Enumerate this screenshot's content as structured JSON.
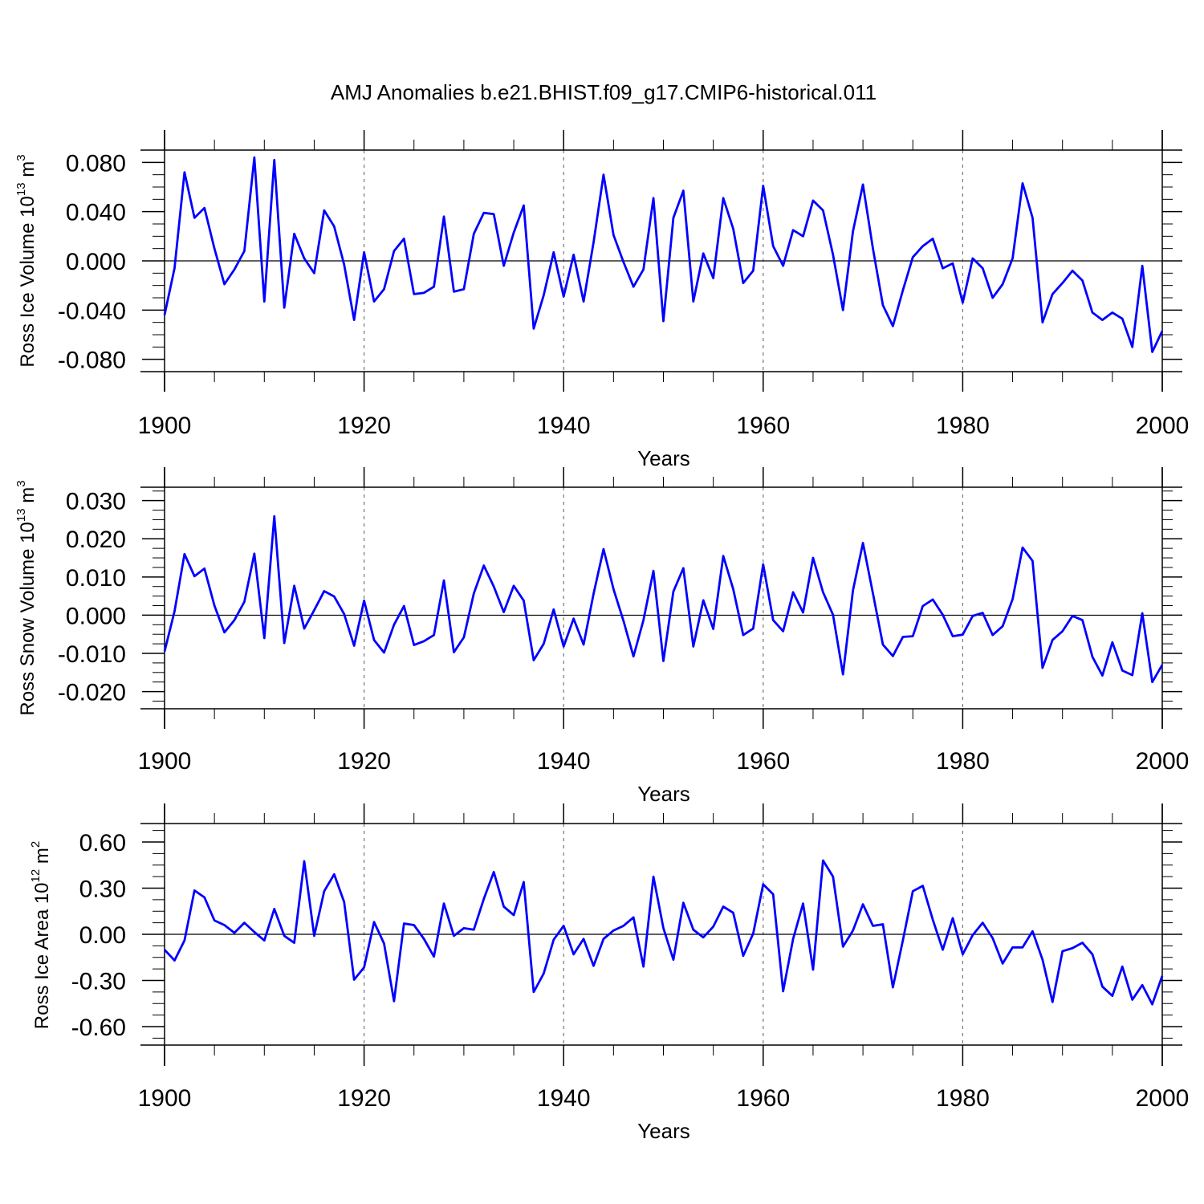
{
  "title": "AMJ Anomalies b.e21.BHIST.f09_g17.CMIP6-historical.011",
  "colors": {
    "series": "#0000ff",
    "axes": "#000000",
    "grid": "#777777"
  },
  "chart_data": [
    {
      "type": "line",
      "title": "AMJ Anomalies b.e21.BHIST.f09_g17.CMIP6-historical.011",
      "xlabel": "Years",
      "ylabel": {
        "text": "Ross Ice Volume 10",
        "exp": "13",
        "unit": " m",
        "unit_exp": "3"
      },
      "xlim": [
        1900,
        2000
      ],
      "ylim": [
        -0.09,
        0.09
      ],
      "xticks": [
        1900,
        1920,
        1940,
        1960,
        1980,
        2000
      ],
      "xtick_labels": [
        "1900",
        "1920",
        "1940",
        "1960",
        "1980",
        "2000"
      ],
      "yticks": [
        0.08,
        0.04,
        0.0,
        -0.04,
        -0.08
      ],
      "ytick_labels": [
        "0.080",
        "0.040",
        "0.000",
        "-0.040",
        "-0.080"
      ],
      "yminor_step": 0.01,
      "grid": "vertical dashed at major x ticks",
      "start_year": 1900,
      "values": [
        -0.044,
        -0.006,
        0.072,
        0.035,
        0.043,
        0.01,
        -0.019,
        -0.007,
        0.008,
        0.084,
        -0.033,
        0.082,
        -0.038,
        0.022,
        0.002,
        -0.01,
        0.041,
        0.028,
        -0.003,
        -0.048,
        0.007,
        -0.033,
        -0.023,
        0.008,
        0.018,
        -0.027,
        -0.026,
        -0.021,
        0.036,
        -0.025,
        -0.023,
        0.022,
        0.039,
        0.038,
        -0.004,
        0.023,
        0.045,
        -0.055,
        -0.028,
        0.007,
        -0.029,
        0.005,
        -0.033,
        0.015,
        0.07,
        0.021,
        -0.001,
        -0.021,
        -0.007,
        0.051,
        -0.049,
        0.035,
        0.057,
        -0.033,
        0.006,
        -0.014,
        0.051,
        0.026,
        -0.018,
        -0.008,
        0.061,
        0.012,
        -0.004,
        0.025,
        0.02,
        0.049,
        0.041,
        0.005,
        -0.04,
        0.024,
        0.062,
        0.01,
        -0.036,
        -0.053,
        -0.024,
        0.003,
        0.012,
        0.018,
        -0.006,
        -0.002,
        -0.034,
        0.002,
        -0.006,
        -0.03,
        -0.019,
        0.002,
        0.063,
        0.035,
        -0.05,
        -0.027,
        -0.018,
        -0.008,
        -0.016,
        -0.042,
        -0.048,
        -0.042,
        -0.047,
        -0.07,
        -0.004,
        -0.074,
        -0.057
      ]
    },
    {
      "type": "line",
      "xlabel": "Years",
      "ylabel": {
        "text": "Ross Snow Volume 10",
        "exp": "13",
        "unit": " m",
        "unit_exp": "3"
      },
      "xlim": [
        1900,
        2000
      ],
      "ylim": [
        -0.0245,
        0.0335
      ],
      "xticks": [
        1900,
        1920,
        1940,
        1960,
        1980,
        2000
      ],
      "xtick_labels": [
        "1900",
        "1920",
        "1940",
        "1960",
        "1980",
        "2000"
      ],
      "yticks": [
        0.03,
        0.02,
        0.01,
        0.0,
        -0.01,
        -0.02
      ],
      "ytick_labels": [
        "0.030",
        "0.020",
        "0.010",
        "0.000",
        "-0.010",
        "-0.020"
      ],
      "yminor_step": 0.0025,
      "grid": "vertical dashed at major x ticks",
      "start_year": 1900,
      "values": [
        -0.0095,
        0.001,
        0.016,
        0.0102,
        0.0122,
        0.0025,
        -0.0045,
        -0.0013,
        0.0035,
        0.0161,
        -0.006,
        0.0259,
        -0.0073,
        0.0077,
        -0.0035,
        0.0013,
        0.0063,
        0.0049,
        0.0003,
        -0.008,
        0.0038,
        -0.0065,
        -0.0098,
        -0.0025,
        0.0024,
        -0.0078,
        -0.0068,
        -0.0052,
        0.0091,
        -0.0097,
        -0.0058,
        0.0057,
        0.013,
        0.0075,
        0.0008,
        0.0077,
        0.0038,
        -0.0118,
        -0.0075,
        0.0015,
        -0.0082,
        -0.0009,
        -0.0077,
        0.0056,
        0.0173,
        0.0068,
        -0.0015,
        -0.0108,
        -0.0013,
        0.0116,
        -0.012,
        0.0062,
        0.0123,
        -0.0082,
        0.0039,
        -0.0036,
        0.0155,
        0.0068,
        -0.0052,
        -0.0035,
        0.0133,
        -0.0013,
        -0.0042,
        0.006,
        0.0007,
        0.015,
        0.006,
        0.0001,
        -0.0155,
        0.0065,
        0.0189,
        0.0057,
        -0.0077,
        -0.0107,
        -0.0057,
        -0.0055,
        0.0024,
        0.0041,
        0.0001,
        -0.0055,
        -0.0051,
        -0.0002,
        0.0006,
        -0.0052,
        -0.0029,
        0.0042,
        0.0177,
        0.0142,
        -0.0138,
        -0.0065,
        -0.0042,
        -0.0002,
        -0.0013,
        -0.0109,
        -0.0158,
        -0.0071,
        -0.0145,
        -0.0157,
        0.0005,
        -0.0175,
        -0.013
      ]
    },
    {
      "type": "line",
      "xlabel": "Years",
      "ylabel": {
        "text": "Ross Ice Area 10",
        "exp": "12",
        "unit": " m",
        "unit_exp": "2"
      },
      "xlim": [
        1900,
        2000
      ],
      "ylim": [
        -0.72,
        0.72
      ],
      "xticks": [
        1900,
        1920,
        1940,
        1960,
        1980,
        2000
      ],
      "xtick_labels": [
        "1900",
        "1920",
        "1940",
        "1960",
        "1980",
        "2000"
      ],
      "yticks": [
        0.6,
        0.3,
        0.0,
        -0.3,
        -0.6
      ],
      "ytick_labels": [
        "0.60",
        "0.30",
        "0.00",
        "-0.30",
        "-0.60"
      ],
      "yminor_step": 0.075,
      "grid": "vertical dashed at major x ticks",
      "start_year": 1900,
      "values": [
        -0.1,
        -0.17,
        -0.04,
        0.285,
        0.24,
        0.09,
        0.06,
        0.01,
        0.075,
        0.015,
        -0.04,
        0.165,
        -0.01,
        -0.055,
        0.475,
        -0.01,
        0.28,
        0.39,
        0.21,
        -0.295,
        -0.215,
        0.08,
        -0.06,
        -0.435,
        0.07,
        0.06,
        -0.03,
        -0.145,
        0.2,
        -0.01,
        0.04,
        0.03,
        0.23,
        0.405,
        0.18,
        0.125,
        0.34,
        -0.375,
        -0.255,
        -0.035,
        0.055,
        -0.13,
        -0.03,
        -0.205,
        -0.03,
        0.025,
        0.055,
        0.11,
        -0.21,
        0.375,
        0.04,
        -0.165,
        0.205,
        0.03,
        -0.02,
        0.05,
        0.18,
        0.14,
        -0.14,
        0.005,
        0.325,
        0.26,
        -0.37,
        -0.03,
        0.2,
        -0.23,
        0.48,
        0.375,
        -0.08,
        0.025,
        0.195,
        0.055,
        0.065,
        -0.345,
        -0.04,
        0.28,
        0.315,
        0.095,
        -0.1,
        0.105,
        -0.13,
        -0.005,
        0.075,
        -0.025,
        -0.19,
        -0.085,
        -0.085,
        0.02,
        -0.165,
        -0.44,
        -0.11,
        -0.09,
        -0.055,
        -0.13,
        -0.34,
        -0.4,
        -0.21,
        -0.425,
        -0.33,
        -0.455,
        -0.27
      ]
    }
  ]
}
